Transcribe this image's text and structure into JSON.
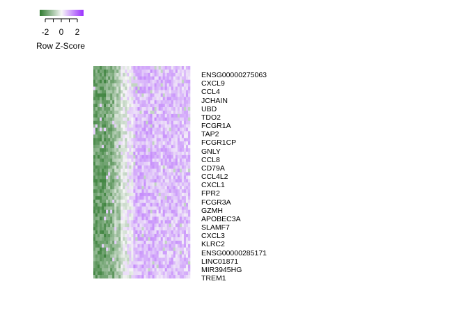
{
  "legend": {
    "title": "Row Z-Score",
    "ticks": [
      "-2",
      "0",
      "2"
    ],
    "range": [
      -3,
      3
    ],
    "colors": {
      "low": "#2f7a2f",
      "mid": "#f7f7f7",
      "high": "#9b30ff"
    }
  },
  "chart_data": {
    "type": "heatmap",
    "title": "",
    "row_labels": [
      "ENSG00000275063",
      "CXCL9",
      "CCL4",
      "JCHAIN",
      "UBD",
      "TDO2",
      "FCGR1A",
      "TAP2",
      "FCGR1CP",
      "GNLY",
      "CCL8",
      "CD79A",
      "CCL4L2",
      "CXCL1",
      "FPR2",
      "FCGR3A",
      "GZMH",
      "APOBEC3A",
      "SLAMF7",
      "CXCL3",
      "KLRC2",
      "ENSG00000285171",
      "LINC01871",
      "MIR3945HG",
      "TREM1"
    ],
    "n_columns": 46,
    "column_pattern": "columns 1-13 negative z-scores (green), columns 14-19 near zero (white), columns 20-46 positive z-scores (purple)",
    "color_range": [
      -3,
      3
    ]
  }
}
